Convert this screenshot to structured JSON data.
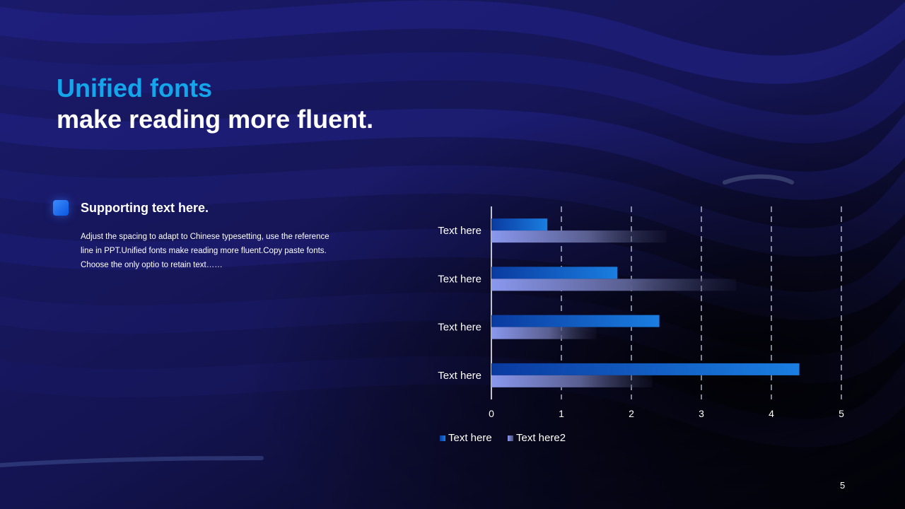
{
  "slide": {
    "title_line1": "Unified fonts",
    "title_line2": "make reading more fluent.",
    "support_heading": "Supporting text here.",
    "support_body": "Adjust the spacing to adapt to Chinese typesetting, use the reference line in PPT.Unified fonts make reading more fluent.Copy paste fonts. Choose the only optio to retain text……",
    "page_number": "5"
  },
  "colors": {
    "title_accent": "#14a6ea",
    "series1": "#1a7ee0",
    "series2": "#8a98ee"
  },
  "chart_data": {
    "type": "bar",
    "orientation": "horizontal",
    "categories": [
      "Text here",
      "Text here",
      "Text here",
      "Text here"
    ],
    "series": [
      {
        "name": "Text here",
        "values": [
          4.4,
          2.4,
          1.8,
          0.8
        ]
      },
      {
        "name": "Text here2",
        "values": [
          2.3,
          1.5,
          3.5,
          2.5
        ]
      }
    ],
    "xlim": [
      0,
      5
    ],
    "xticks": [
      "0",
      "1",
      "2",
      "3",
      "4",
      "5"
    ],
    "grid": "vertical dashed",
    "legend": "bottom"
  }
}
